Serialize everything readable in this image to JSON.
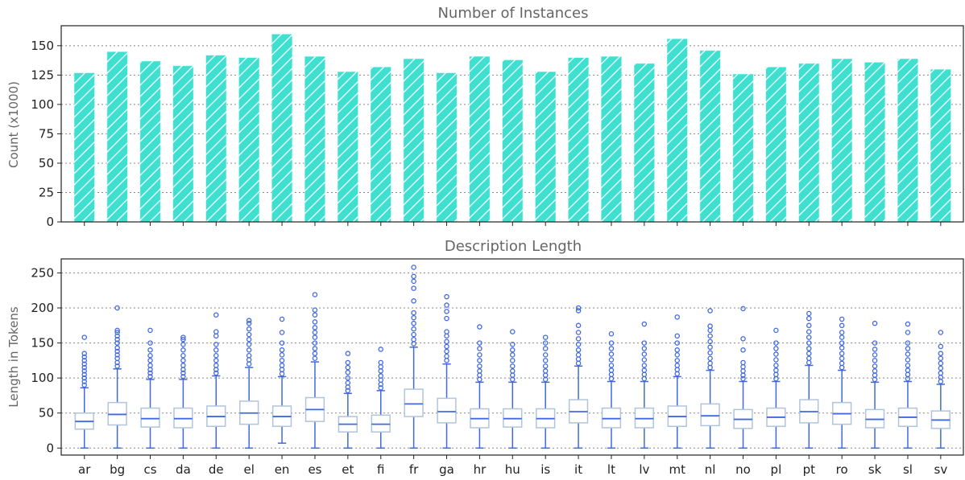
{
  "chart_data": [
    {
      "type": "bar",
      "title": "Number of Instances",
      "ylabel": "Count (x1000)",
      "xlabel": "",
      "ylim": [
        0,
        167
      ],
      "yticks": [
        0,
        25,
        50,
        75,
        100,
        125,
        150
      ],
      "grid": true,
      "categories": [
        "ar",
        "bg",
        "cs",
        "da",
        "de",
        "el",
        "en",
        "es",
        "et",
        "fi",
        "fr",
        "ga",
        "hr",
        "hu",
        "is",
        "it",
        "lt",
        "lv",
        "mt",
        "nl",
        "no",
        "pl",
        "pt",
        "ro",
        "sk",
        "sl",
        "sv"
      ],
      "values": [
        127,
        145,
        137,
        133,
        142,
        140,
        160,
        141,
        128,
        132,
        139,
        127,
        141,
        138,
        128,
        140,
        141,
        135,
        156,
        146,
        126,
        132,
        135,
        139,
        136,
        139,
        130
      ],
      "colors": {
        "bar": "#40e0d0",
        "hatch": "#ffffff"
      }
    },
    {
      "type": "box",
      "title": "Description Length",
      "ylabel": "Length in Tokens",
      "xlabel": "",
      "ylim": [
        -10,
        270
      ],
      "yticks": [
        0,
        50,
        100,
        150,
        200,
        250
      ],
      "grid": true,
      "categories": [
        "ar",
        "bg",
        "cs",
        "da",
        "de",
        "el",
        "en",
        "es",
        "et",
        "fi",
        "fr",
        "ga",
        "hr",
        "hu",
        "is",
        "it",
        "lt",
        "lv",
        "mt",
        "nl",
        "no",
        "pl",
        "pt",
        "ro",
        "sk",
        "sl",
        "sv"
      ],
      "boxes": [
        {
          "min": 0,
          "q1": 27,
          "median": 38,
          "q3": 50,
          "max": 86,
          "outliers": [
            90,
            95,
            100,
            105,
            110,
            115,
            120,
            125,
            130,
            135,
            158
          ]
        },
        {
          "min": 0,
          "q1": 33,
          "median": 48,
          "q3": 65,
          "max": 113,
          "outliers": [
            117,
            122,
            128,
            133,
            138,
            143,
            150,
            155,
            160,
            165,
            168,
            200
          ]
        },
        {
          "min": 0,
          "q1": 30,
          "median": 42,
          "q3": 57,
          "max": 98,
          "outliers": [
            102,
            107,
            112,
            118,
            125,
            132,
            140,
            150,
            168
          ]
        },
        {
          "min": 0,
          "q1": 29,
          "median": 42,
          "q3": 57,
          "max": 98,
          "outliers": [
            102,
            107,
            112,
            118,
            125,
            132,
            140,
            148,
            155,
            158
          ]
        },
        {
          "min": 0,
          "q1": 31,
          "median": 45,
          "q3": 60,
          "max": 103,
          "outliers": [
            107,
            112,
            118,
            125,
            132,
            140,
            148,
            160,
            166,
            190
          ]
        },
        {
          "min": 0,
          "q1": 34,
          "median": 50,
          "q3": 67,
          "max": 115,
          "outliers": [
            120,
            126,
            132,
            140,
            148,
            155,
            162,
            170,
            178,
            182
          ]
        },
        {
          "min": 7,
          "q1": 31,
          "median": 45,
          "q3": 60,
          "max": 102,
          "outliers": [
            106,
            112,
            118,
            125,
            133,
            140,
            150,
            165,
            184
          ]
        },
        {
          "min": 0,
          "q1": 38,
          "median": 55,
          "q3": 72,
          "max": 123,
          "outliers": [
            128,
            135,
            142,
            150,
            158,
            165,
            172,
            180,
            190,
            197,
            219
          ]
        },
        {
          "min": 0,
          "q1": 23,
          "median": 34,
          "q3": 45,
          "max": 78,
          "outliers": [
            82,
            87,
            93,
            100,
            108,
            115,
            122,
            135
          ]
        },
        {
          "min": 0,
          "q1": 23,
          "median": 34,
          "q3": 47,
          "max": 82,
          "outliers": [
            86,
            91,
            97,
            103,
            110,
            116,
            122,
            141
          ]
        },
        {
          "min": 0,
          "q1": 45,
          "median": 63,
          "q3": 84,
          "max": 144,
          "outliers": [
            149,
            155,
            162,
            170,
            178,
            186,
            193,
            210,
            228,
            238,
            245,
            258
          ]
        },
        {
          "min": 0,
          "q1": 36,
          "median": 52,
          "q3": 71,
          "max": 120,
          "outliers": [
            125,
            131,
            138,
            145,
            152,
            160,
            166,
            185,
            195,
            204,
            216
          ]
        },
        {
          "min": 0,
          "q1": 29,
          "median": 42,
          "q3": 56,
          "max": 94,
          "outliers": [
            98,
            104,
            110,
            117,
            125,
            133,
            142,
            150,
            173
          ]
        },
        {
          "min": 0,
          "q1": 30,
          "median": 42,
          "q3": 56,
          "max": 94,
          "outliers": [
            98,
            104,
            110,
            117,
            125,
            133,
            140,
            148,
            166
          ]
        },
        {
          "min": 0,
          "q1": 29,
          "median": 42,
          "q3": 56,
          "max": 94,
          "outliers": [
            98,
            104,
            110,
            117,
            125,
            133,
            142,
            150,
            158
          ]
        },
        {
          "min": 0,
          "q1": 36,
          "median": 52,
          "q3": 69,
          "max": 117,
          "outliers": [
            121,
            127,
            133,
            140,
            148,
            156,
            165,
            175,
            196,
            200
          ]
        },
        {
          "min": 0,
          "q1": 29,
          "median": 42,
          "q3": 57,
          "max": 95,
          "outliers": [
            99,
            105,
            111,
            118,
            126,
            134,
            142,
            150,
            163
          ]
        },
        {
          "min": 0,
          "q1": 29,
          "median": 42,
          "q3": 57,
          "max": 95,
          "outliers": [
            99,
            105,
            111,
            118,
            126,
            134,
            142,
            150,
            177
          ]
        },
        {
          "min": 0,
          "q1": 31,
          "median": 45,
          "q3": 60,
          "max": 102,
          "outliers": [
            106,
            112,
            118,
            125,
            133,
            140,
            150,
            160,
            187
          ]
        },
        {
          "min": 0,
          "q1": 32,
          "median": 46,
          "q3": 63,
          "max": 111,
          "outliers": [
            115,
            121,
            128,
            136,
            144,
            152,
            160,
            168,
            174,
            196
          ]
        },
        {
          "min": 0,
          "q1": 28,
          "median": 41,
          "q3": 55,
          "max": 95,
          "outliers": [
            99,
            104,
            110,
            116,
            122,
            140,
            156,
            199
          ]
        },
        {
          "min": 0,
          "q1": 31,
          "median": 44,
          "q3": 57,
          "max": 95,
          "outliers": [
            99,
            105,
            111,
            118,
            126,
            134,
            142,
            150,
            168
          ]
        },
        {
          "min": 0,
          "q1": 36,
          "median": 52,
          "q3": 69,
          "max": 118,
          "outliers": [
            122,
            128,
            135,
            142,
            150,
            158,
            166,
            175,
            185,
            192
          ]
        },
        {
          "min": 0,
          "q1": 34,
          "median": 49,
          "q3": 65,
          "max": 111,
          "outliers": [
            115,
            121,
            128,
            135,
            143,
            150,
            158,
            165,
            175,
            184
          ]
        },
        {
          "min": 0,
          "q1": 29,
          "median": 41,
          "q3": 55,
          "max": 94,
          "outliers": [
            98,
            104,
            110,
            117,
            125,
            133,
            141,
            150,
            178
          ]
        },
        {
          "min": 0,
          "q1": 31,
          "median": 44,
          "q3": 57,
          "max": 95,
          "outliers": [
            99,
            105,
            111,
            118,
            126,
            134,
            142,
            150,
            165,
            177
          ]
        },
        {
          "min": 0,
          "q1": 28,
          "median": 40,
          "q3": 53,
          "max": 91,
          "outliers": [
            95,
            101,
            107,
            114,
            121,
            128,
            135,
            145,
            165
          ]
        }
      ],
      "colors": {
        "box": "#b0c4de",
        "median": "#4169e1",
        "whisker": "#4169e1",
        "outlier": "#4169e1"
      }
    }
  ]
}
